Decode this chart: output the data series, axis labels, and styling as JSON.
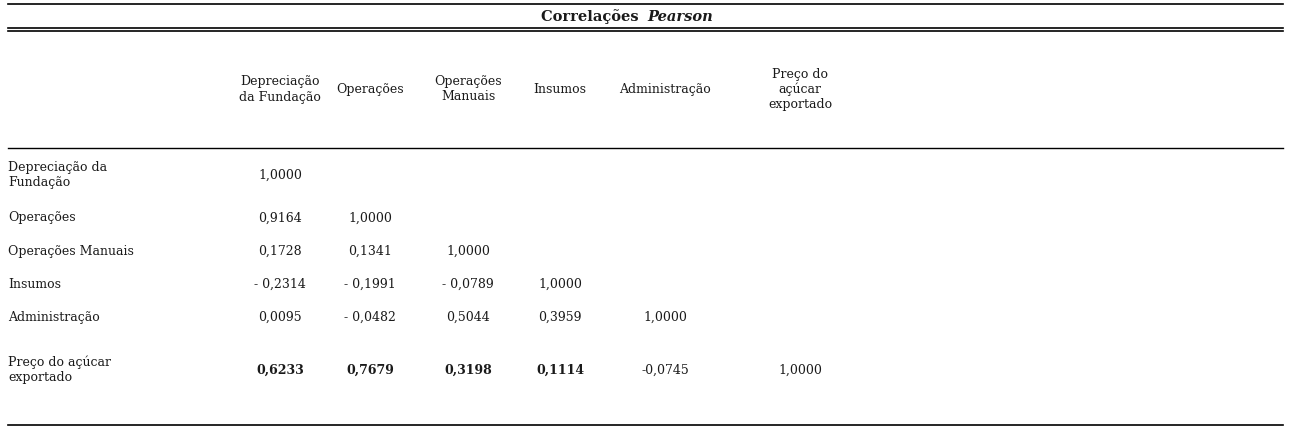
{
  "col_headers": [
    "Depreciação\nda Fundação",
    "Operações",
    "Operações\nManuais",
    "Insumos",
    "Administração",
    "Preço do\naçúcar\nexportado"
  ],
  "row_headers": [
    "Depreciação da\nFundação",
    "Operações",
    "Operações Manuais",
    "Insumos",
    "Administração",
    "Preço do açúcar\nexportado"
  ],
  "data": [
    [
      "1,0000",
      "",
      "",
      "",
      "",
      ""
    ],
    [
      "0,9164",
      "1,0000",
      "",
      "",
      "",
      ""
    ],
    [
      "0,1728",
      "0,1341",
      "1,0000",
      "",
      "",
      ""
    ],
    [
      "- 0,2314",
      "- 0,1991",
      "- 0,0789",
      "1,0000",
      "",
      ""
    ],
    [
      "0,0095",
      "- 0,0482",
      "0,5044",
      "0,3959",
      "1,0000",
      ""
    ],
    [
      "0,6233",
      "0,7679",
      "0,3198",
      "0,1114",
      "-0,0745",
      "1,0000"
    ]
  ],
  "bold_row": 5,
  "bold_cols": [
    0,
    1,
    2,
    3
  ],
  "background_color": "#ffffff",
  "text_color": "#1a1a1a",
  "font_size": 9.0,
  "header_font_size": 9.0,
  "title_font_size": 10.5,
  "title_normal": "Correlações ",
  "title_italic": "Pearson"
}
